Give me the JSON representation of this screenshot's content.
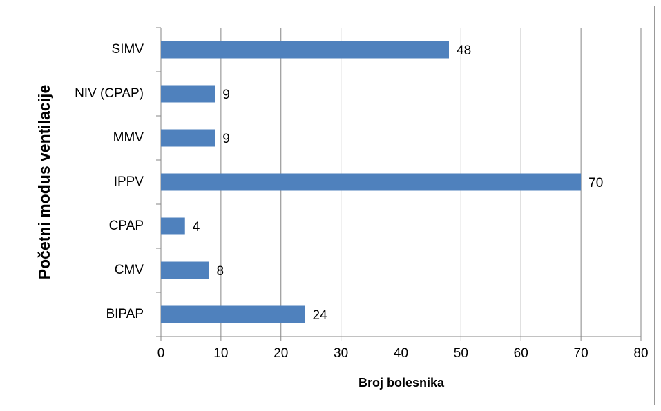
{
  "chart_data": {
    "type": "bar",
    "orientation": "horizontal",
    "categories": [
      "BIPAP",
      "CMV",
      "CPAP",
      "IPPV",
      "MMV",
      "NIV (CPAP)",
      "SIMV"
    ],
    "values": [
      24,
      8,
      4,
      70,
      9,
      9,
      48
    ],
    "color": "#4f81bd",
    "xlabel": "Broj bolesnika",
    "ylabel": "Početni modus ventilacije",
    "xlim": [
      0,
      80
    ],
    "xticks": [
      0,
      10,
      20,
      30,
      40,
      50,
      60,
      70,
      80
    ],
    "grid": true,
    "data_labels": true
  }
}
